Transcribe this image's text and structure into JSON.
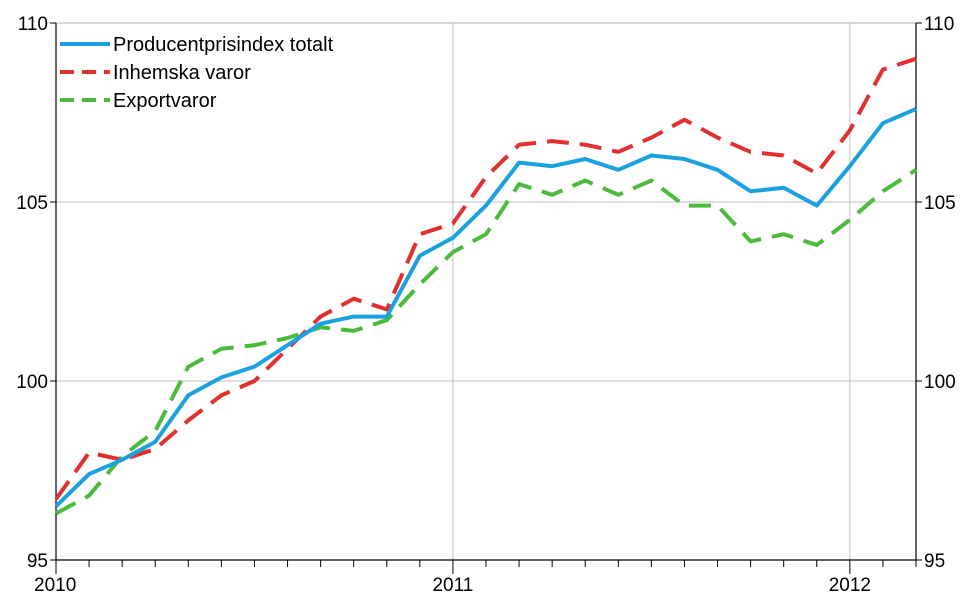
{
  "chart_data": {
    "type": "line",
    "title": "",
    "xlabel": "",
    "ylabel": "",
    "ylim": [
      95,
      110
    ],
    "yticks": [
      95,
      100,
      105,
      110
    ],
    "y_tick_labels": [
      "95",
      "100",
      "105",
      "110"
    ],
    "x_tick_labels": [
      "2010",
      "2011",
      "2012"
    ],
    "x_tick_months": [
      0,
      12,
      24
    ],
    "x_start": "2010-01",
    "x_end": "2012-03",
    "grid": true,
    "legend_position": "top-left",
    "series": [
      {
        "name": "Producentprisindex totalt",
        "color": "#1aa1e0",
        "dash": "solid",
        "x": [
          "2010-01",
          "2010-02",
          "2010-03",
          "2010-04",
          "2010-05",
          "2010-06",
          "2010-07",
          "2010-08",
          "2010-09",
          "2010-10",
          "2010-11",
          "2010-12",
          "2011-01",
          "2011-02",
          "2011-03",
          "2011-04",
          "2011-05",
          "2011-06",
          "2011-07",
          "2011-08",
          "2011-09",
          "2011-10",
          "2011-11",
          "2011-12",
          "2012-01",
          "2012-02",
          "2012-03"
        ],
        "values": [
          96.5,
          97.4,
          97.8,
          98.3,
          99.6,
          100.1,
          100.4,
          101.0,
          101.6,
          101.8,
          101.8,
          103.5,
          104.0,
          104.9,
          106.1,
          106.0,
          106.2,
          105.9,
          106.3,
          106.2,
          105.9,
          105.3,
          105.4,
          104.9,
          106.0,
          107.2,
          107.6
        ]
      },
      {
        "name": "Inhemska varor",
        "color": "#e03030",
        "dash": "dashed",
        "x": [
          "2010-01",
          "2010-02",
          "2010-03",
          "2010-04",
          "2010-05",
          "2010-06",
          "2010-07",
          "2010-08",
          "2010-09",
          "2010-10",
          "2010-11",
          "2010-12",
          "2011-01",
          "2011-02",
          "2011-03",
          "2011-04",
          "2011-05",
          "2011-06",
          "2011-07",
          "2011-08",
          "2011-09",
          "2011-10",
          "2011-11",
          "2011-12",
          "2012-01",
          "2012-02",
          "2012-03"
        ],
        "values": [
          96.7,
          98.0,
          97.8,
          98.1,
          98.9,
          99.6,
          100.0,
          100.9,
          101.8,
          102.3,
          102.0,
          104.1,
          104.4,
          105.7,
          106.6,
          106.7,
          106.6,
          106.4,
          106.8,
          107.3,
          106.8,
          106.4,
          106.3,
          105.8,
          107.0,
          108.7,
          109.0
        ]
      },
      {
        "name": "Exportvaror",
        "color": "#4cbb3c",
        "dash": "dashed",
        "x": [
          "2010-01",
          "2010-02",
          "2010-03",
          "2010-04",
          "2010-05",
          "2010-06",
          "2010-07",
          "2010-08",
          "2010-09",
          "2010-10",
          "2010-11",
          "2010-12",
          "2011-01",
          "2011-02",
          "2011-03",
          "2011-04",
          "2011-05",
          "2011-06",
          "2011-07",
          "2011-08",
          "2011-09",
          "2011-10",
          "2011-11",
          "2011-12",
          "2012-01",
          "2012-02",
          "2012-03"
        ],
        "values": [
          96.3,
          96.8,
          97.9,
          98.6,
          100.4,
          100.9,
          101.0,
          101.2,
          101.5,
          101.4,
          101.7,
          102.7,
          103.6,
          104.1,
          105.5,
          105.2,
          105.6,
          105.2,
          105.6,
          104.9,
          104.9,
          103.9,
          104.1,
          103.8,
          104.5,
          105.3,
          105.9
        ]
      }
    ]
  }
}
